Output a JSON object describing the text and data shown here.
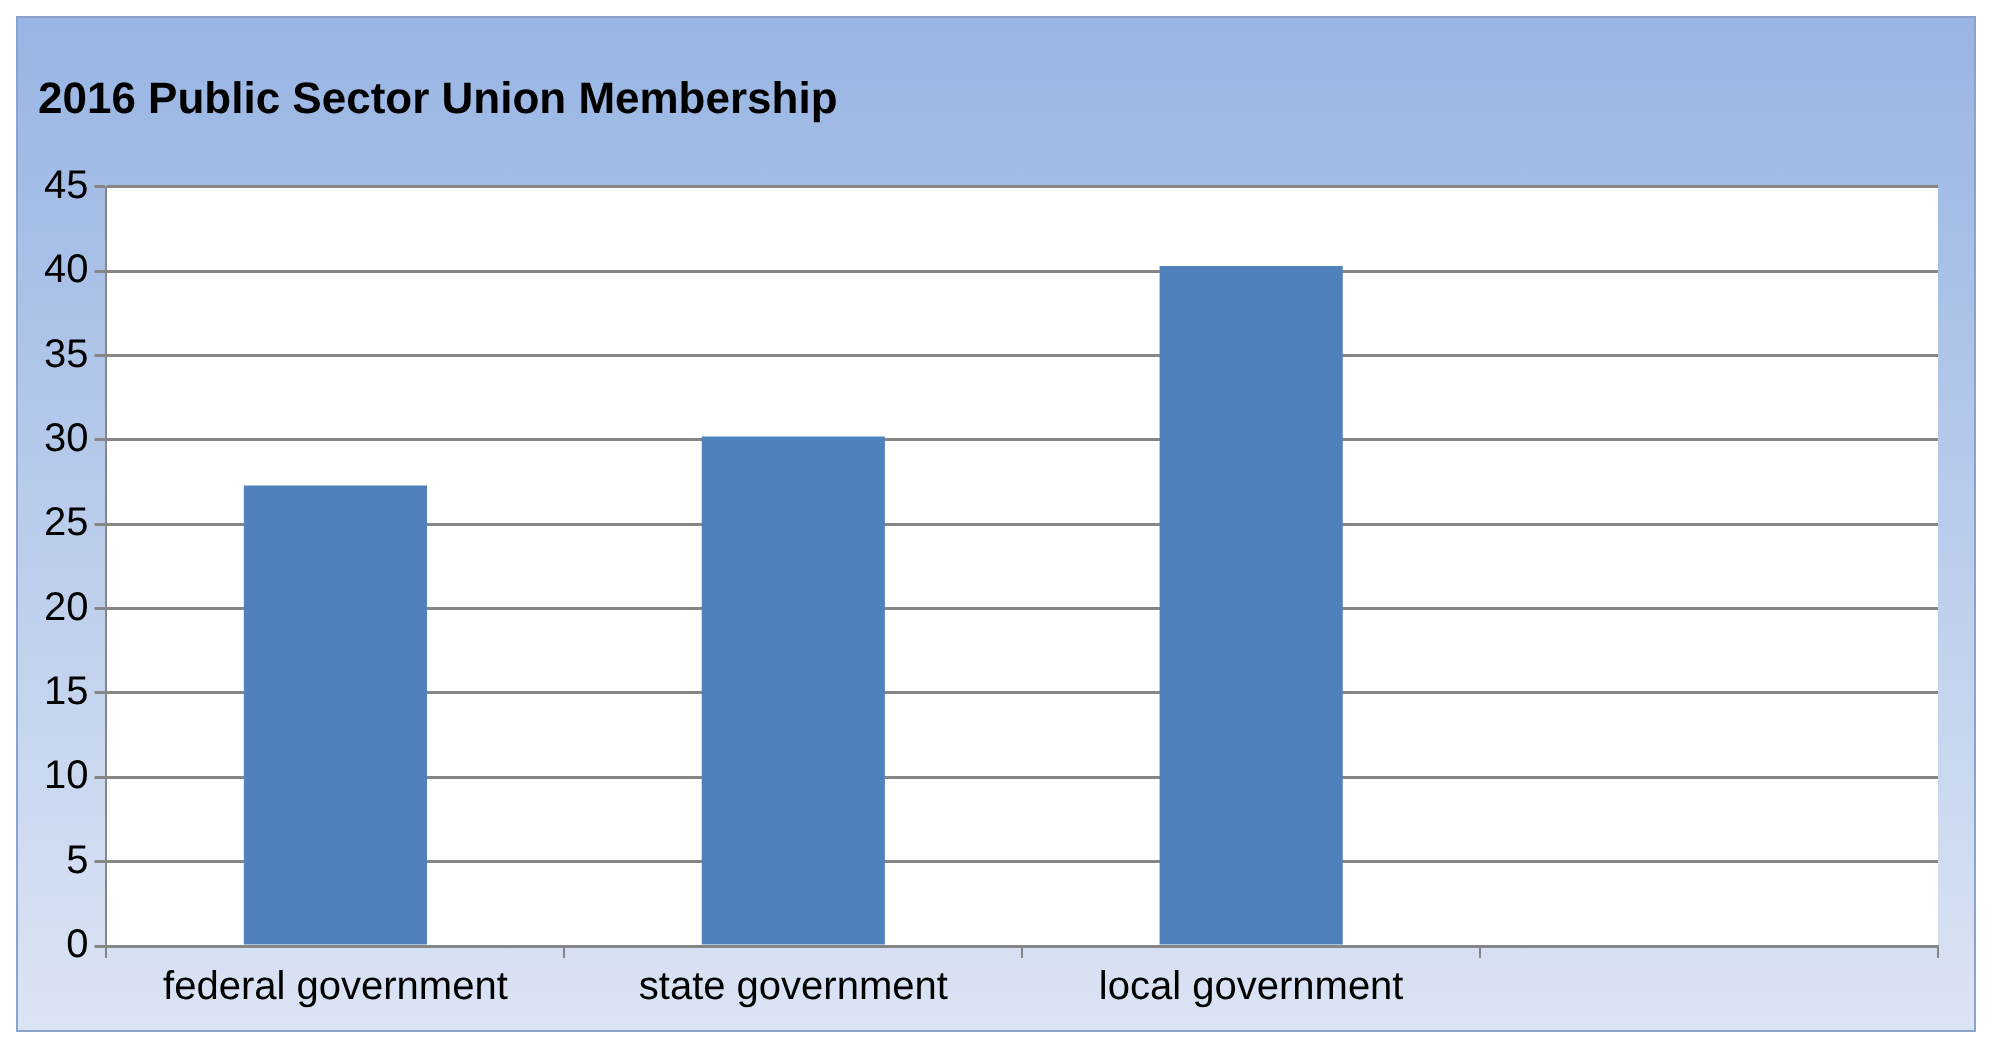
{
  "chart_data": {
    "type": "bar",
    "title": "2016 Public Sector Union Membership",
    "categories": [
      "federal government",
      "state government",
      "local government",
      null
    ],
    "values": [
      27.3,
      30.2,
      40.3,
      null
    ],
    "color": "#4f81bd",
    "ylim": [
      0,
      45
    ],
    "yticks": [
      0,
      5,
      10,
      15,
      20,
      25,
      30,
      35,
      40,
      45
    ],
    "grid": "y",
    "legend": false
  }
}
